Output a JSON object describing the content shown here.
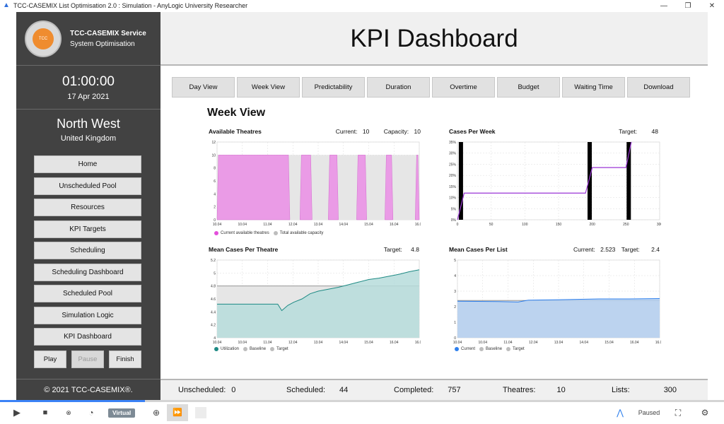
{
  "window": {
    "title": "TCC-CASEMIX List Optimisation 2.0 : Simulation - AnyLogic University Researcher",
    "app_icon": "anylogic-icon",
    "minimize": "—",
    "maximize": "❐",
    "close": "✕"
  },
  "sidebar": {
    "brand_line1": "TCC-CASEMIX Service",
    "brand_line2": "System Optimisation",
    "logo_text": "TCC",
    "clock": "01:00:00",
    "date": "17 Apr 2021",
    "region": "North West",
    "country": "United Kingdom",
    "nav": [
      {
        "label": "Home"
      },
      {
        "label": "Unscheduled Pool"
      },
      {
        "label": "Resources"
      },
      {
        "label": "KPI Targets"
      },
      {
        "label": "Scheduling"
      },
      {
        "label": "Scheduling Dashboard"
      },
      {
        "label": "Scheduled Pool"
      },
      {
        "label": "Simulation Logic"
      },
      {
        "label": "KPI Dashboard"
      }
    ],
    "play": "Play",
    "pause": "Pause",
    "finish": "Finish",
    "footer": "© 2021 TCC-CASEMIX®."
  },
  "header": {
    "title": "KPI Dashboard"
  },
  "tabs": [
    "Day View",
    "Week View",
    "Predictability",
    "Duration",
    "Overtime",
    "Budget",
    "Waiting Time",
    "Download"
  ],
  "view_title": "Week View",
  "panels": {
    "available_theatres": {
      "name": "Available Theatres",
      "current_label": "Current:",
      "current": "10",
      "capacity_label": "Capacity:",
      "capacity": "10",
      "legend": [
        "Current available theatres",
        "Total available capacity"
      ]
    },
    "cases_per_week": {
      "name": "Cases Per Week",
      "target_label": "Target:",
      "target": "48"
    },
    "mean_cases_per_theatre": {
      "name": "Mean Cases Per Theatre",
      "target_label": "Target:",
      "target": "4.8",
      "legend": [
        "Utilization",
        "Baseline",
        "Target"
      ]
    },
    "mean_cases_per_list": {
      "name": "Mean Cases Per List",
      "current_label": "Current:",
      "current": "2.523",
      "target_label": "Target:",
      "target": "2.4",
      "legend": [
        "Current",
        "Baseline",
        "Target"
      ]
    }
  },
  "chart_data": [
    {
      "type": "area",
      "yticks": [
        "0",
        "2",
        "4",
        "6",
        "8",
        "10",
        "12"
      ],
      "xticks": [
        "10.04",
        "10.04",
        "11.04",
        "12.04",
        "13.04",
        "14.04",
        "15.04",
        "16.04",
        "16.04"
      ],
      "ylim": [
        0,
        12
      ],
      "series": [
        {
          "name": "Current available theatres",
          "color": "#ea9be6",
          "segments": [
            [
              0,
              0.36
            ],
            [
              0.41,
              0.47
            ],
            [
              0.55,
              0.6
            ],
            [
              0.69,
              0.74
            ],
            [
              0.83,
              0.87
            ],
            [
              0.98,
              1.0
            ]
          ],
          "value": 10
        },
        {
          "name": "Total available capacity",
          "color": "#e6e6e6",
          "value": 10
        }
      ]
    },
    {
      "type": "line",
      "yticks": [
        "0%",
        "5%",
        "10%",
        "15%",
        "20%",
        "25%",
        "30%",
        "35%"
      ],
      "xticks": [
        "0",
        "50",
        "100",
        "150",
        "200",
        "250",
        "300"
      ],
      "xlim": [
        0,
        300
      ],
      "ylim": [
        0,
        35
      ],
      "bars_x": [
        2,
        193,
        251
      ],
      "x": [
        0,
        10,
        190,
        200,
        250,
        258
      ],
      "y": [
        0,
        12,
        12,
        23.5,
        23.5,
        35
      ]
    },
    {
      "type": "area",
      "yticks": [
        "4",
        "4.2",
        "4.4",
        "4.6",
        "4.8",
        "5",
        "5.2"
      ],
      "xticks": [
        "10.04",
        "10.04",
        "11.04",
        "12.04",
        "13.04",
        "14.04",
        "15.04",
        "16.04",
        "16.04"
      ],
      "ylim": [
        4,
        5.2
      ],
      "baseline": 4.8,
      "series_color": "#b6dcdb",
      "x": [
        0,
        0.1,
        0.2,
        0.3,
        0.32,
        0.35,
        0.38,
        0.42,
        0.46,
        0.5,
        0.55,
        0.6,
        0.65,
        0.7,
        0.75,
        0.8,
        0.85,
        0.9,
        0.95,
        1.0
      ],
      "y": [
        4.52,
        4.52,
        4.52,
        4.52,
        4.42,
        4.5,
        4.55,
        4.6,
        4.68,
        4.72,
        4.75,
        4.78,
        4.82,
        4.86,
        4.9,
        4.92,
        4.95,
        4.98,
        5.02,
        5.05
      ]
    },
    {
      "type": "area",
      "yticks": [
        "0",
        "1",
        "2",
        "3",
        "4",
        "5"
      ],
      "xticks": [
        "10.04",
        "10.04",
        "11.04",
        "12.04",
        "13.04",
        "14.04",
        "15.04",
        "16.04",
        "16.04"
      ],
      "ylim": [
        0,
        5
      ],
      "baseline": 2.4,
      "series_color": "#b4cff0",
      "x": [
        0,
        0.2,
        0.3,
        0.35,
        0.5,
        0.7,
        0.85,
        1.0
      ],
      "y": [
        2.35,
        2.33,
        2.3,
        2.42,
        2.45,
        2.5,
        2.5,
        2.52
      ]
    }
  ],
  "status": {
    "unscheduled_label": "Unscheduled:",
    "unscheduled": "0",
    "scheduled_label": "Scheduled:",
    "scheduled": "44",
    "completed_label": "Completed:",
    "completed": "757",
    "theatres_label": "Theatres:",
    "theatres": "10",
    "lists_label": "Lists:",
    "lists": "300"
  },
  "runtime": {
    "virtual": "Virtual",
    "paused": "Paused",
    "progress": 0.2
  }
}
